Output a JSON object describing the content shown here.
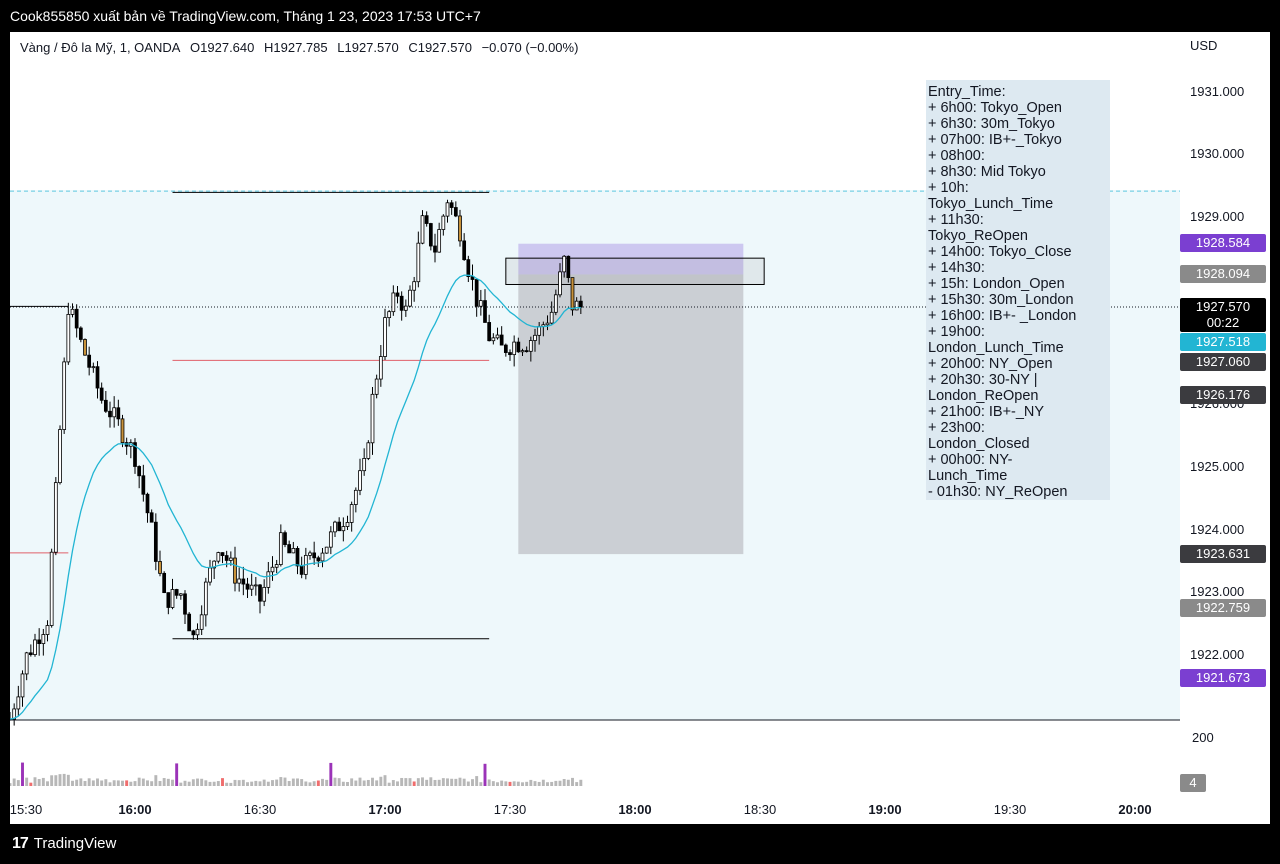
{
  "header": {
    "title": "Cook855850 xuất bản về TradingView.com, Tháng 1 23, 2023 17:53 UTC+7"
  },
  "legend": {
    "symbol": "Vàng / Đô la Mỹ, 1, OANDA",
    "open": "O1927.640",
    "high": "H1927.785",
    "low": "L1927.570",
    "close": "C1927.570",
    "change": "−0.070 (−0.00%)"
  },
  "currency": "USD",
  "price_axis": [
    "1931.000",
    "1930.000",
    "1929.000",
    "1926.000",
    "1925.000",
    "1924.000",
    "1923.000",
    "1922.000"
  ],
  "price_labels": [
    {
      "text": "1928.584",
      "color": "#7b3fd1"
    },
    {
      "text": "1928.094",
      "color": "#8a8a8a"
    },
    {
      "text": "1927.570",
      "sub": "00:22",
      "color": "#000000"
    },
    {
      "text": "1927.518",
      "color": "#22b5d3"
    },
    {
      "text": "1927.060",
      "color": "#3b3b3f"
    },
    {
      "text": "1926.176",
      "color": "#3b3b3f"
    },
    {
      "text": "1923.631",
      "color": "#3b3b3f"
    },
    {
      "text": "1922.759",
      "color": "#8a8a8a"
    },
    {
      "text": "1921.673",
      "color": "#7b3fd1"
    }
  ],
  "time_axis": [
    {
      "label": "15:30",
      "major": false
    },
    {
      "label": "16:00",
      "major": true
    },
    {
      "label": "16:30",
      "major": false
    },
    {
      "label": "17:00",
      "major": true
    },
    {
      "label": "17:30",
      "major": false
    },
    {
      "label": "18:00",
      "major": true
    },
    {
      "label": "18:30",
      "major": false
    },
    {
      "label": "19:00",
      "major": true
    },
    {
      "label": "19:30",
      "major": false
    },
    {
      "label": "20:00",
      "major": true
    }
  ],
  "note": {
    "lines": [
      "Entry_Time:",
      "+ 6h00: Tokyo_Open",
      "+ 6h30: 30m_Tokyo",
      "+ 07h00: IB+-_Tokyo",
      "+ 08h00:",
      "+ 8h30: Mid Tokyo",
      "+ 10h:",
      "Tokyo_Lunch_Time",
      "+ 11h30:",
      "Tokyo_ReOpen",
      "+ 14h00: Tokyo_Close",
      "+ 14h30:",
      "+ 15h: London_Open",
      "+ 15h30: 30m_London",
      "+ 16h00: IB+- _London",
      "+ 19h00:",
      "London_Lunch_Time",
      "+ 20h00: NY_Open",
      "+ 20h30: 30-NY |",
      "London_ReOpen",
      "+ 21h00: IB+-_NY",
      "+ 23h00:",
      "London_Closed",
      "+ 00h00: NY-",
      "Lunch_Time",
      "- 01h30: NY_ReOpen"
    ]
  },
  "volume": {
    "axis_tick": "200",
    "last": "4"
  },
  "footer": {
    "brand": "TradingView"
  },
  "chart_data": {
    "type": "candlestick",
    "symbol": "XAUUSD",
    "interval": "1m",
    "x_range": [
      "15:30",
      "20:00"
    ],
    "ylim": [
      1920.9,
      1931.5
    ],
    "last_price": 1927.57,
    "ma_last": 1927.518,
    "close_path": [
      [
        "15:30",
        1921.0
      ],
      [
        "15:34",
        1922.0
      ],
      [
        "15:39",
        1922.6
      ],
      [
        "15:44",
        1927.6
      ],
      [
        "15:47",
        1927.0
      ],
      [
        "15:52",
        1926.1
      ],
      [
        "15:56",
        1925.7
      ],
      [
        "16:00",
        1925.2
      ],
      [
        "16:04",
        1924.0
      ],
      [
        "16:07",
        1922.9
      ],
      [
        "16:11",
        1923.0
      ],
      [
        "16:14",
        1922.3
      ],
      [
        "16:17",
        1923.1
      ],
      [
        "16:20",
        1923.8
      ],
      [
        "16:24",
        1923.3
      ],
      [
        "16:30",
        1922.9
      ],
      [
        "16:35",
        1923.8
      ],
      [
        "16:40",
        1923.4
      ],
      [
        "16:46",
        1923.8
      ],
      [
        "16:51",
        1924.3
      ],
      [
        "16:55",
        1925.0
      ],
      [
        "16:57",
        1926.1
      ],
      [
        "17:00",
        1927.3
      ],
      [
        "17:03",
        1927.8
      ],
      [
        "17:05",
        1927.5
      ],
      [
        "17:07",
        1928.1
      ],
      [
        "17:09",
        1928.9
      ],
      [
        "17:12",
        1928.5
      ],
      [
        "17:15",
        1929.3
      ],
      [
        "17:18",
        1928.8
      ],
      [
        "17:20",
        1928.2
      ],
      [
        "17:22",
        1927.7
      ],
      [
        "17:25",
        1927.1
      ],
      [
        "17:28",
        1926.9
      ],
      [
        "17:31",
        1927.0
      ],
      [
        "17:34",
        1927.0
      ],
      [
        "17:37",
        1927.2
      ],
      [
        "17:40",
        1927.5
      ],
      [
        "17:43",
        1928.3
      ],
      [
        "17:45",
        1927.6
      ],
      [
        "17:47",
        1927.57
      ]
    ],
    "levels": [
      {
        "price": 1929.42,
        "style": "dashed",
        "color": "#5ec8e0"
      },
      {
        "price": 1929.4,
        "from": "16:09",
        "to": "17:25",
        "color": "#000000"
      },
      {
        "price": 1926.72,
        "from": "16:09",
        "to": "17:25",
        "color": "#e0606a"
      },
      {
        "price": 1922.28,
        "from": "16:09",
        "to": "17:25",
        "color": "#000000"
      },
      {
        "price": 1927.58,
        "from": "15:30",
        "to": "15:44",
        "color": "#000000"
      },
      {
        "price": 1923.65,
        "from": "15:30",
        "to": "15:44",
        "color": "#e0606a"
      }
    ],
    "zones": [
      {
        "kind": "profit",
        "from": "17:32",
        "to": "18:26",
        "top": 1928.58,
        "bottom": 1928.09,
        "color": "#c9c2ee"
      },
      {
        "kind": "loss",
        "from": "17:32",
        "to": "18:26",
        "top": 1928.09,
        "bottom": 1923.63,
        "color": "#c6cacf"
      },
      {
        "kind": "rectangle",
        "from": "17:29",
        "to": "18:31",
        "top": 1928.35,
        "bottom": 1927.93
      }
    ],
    "volume_ylim": [
      0,
      260
    ],
    "volume_last": 4
  }
}
